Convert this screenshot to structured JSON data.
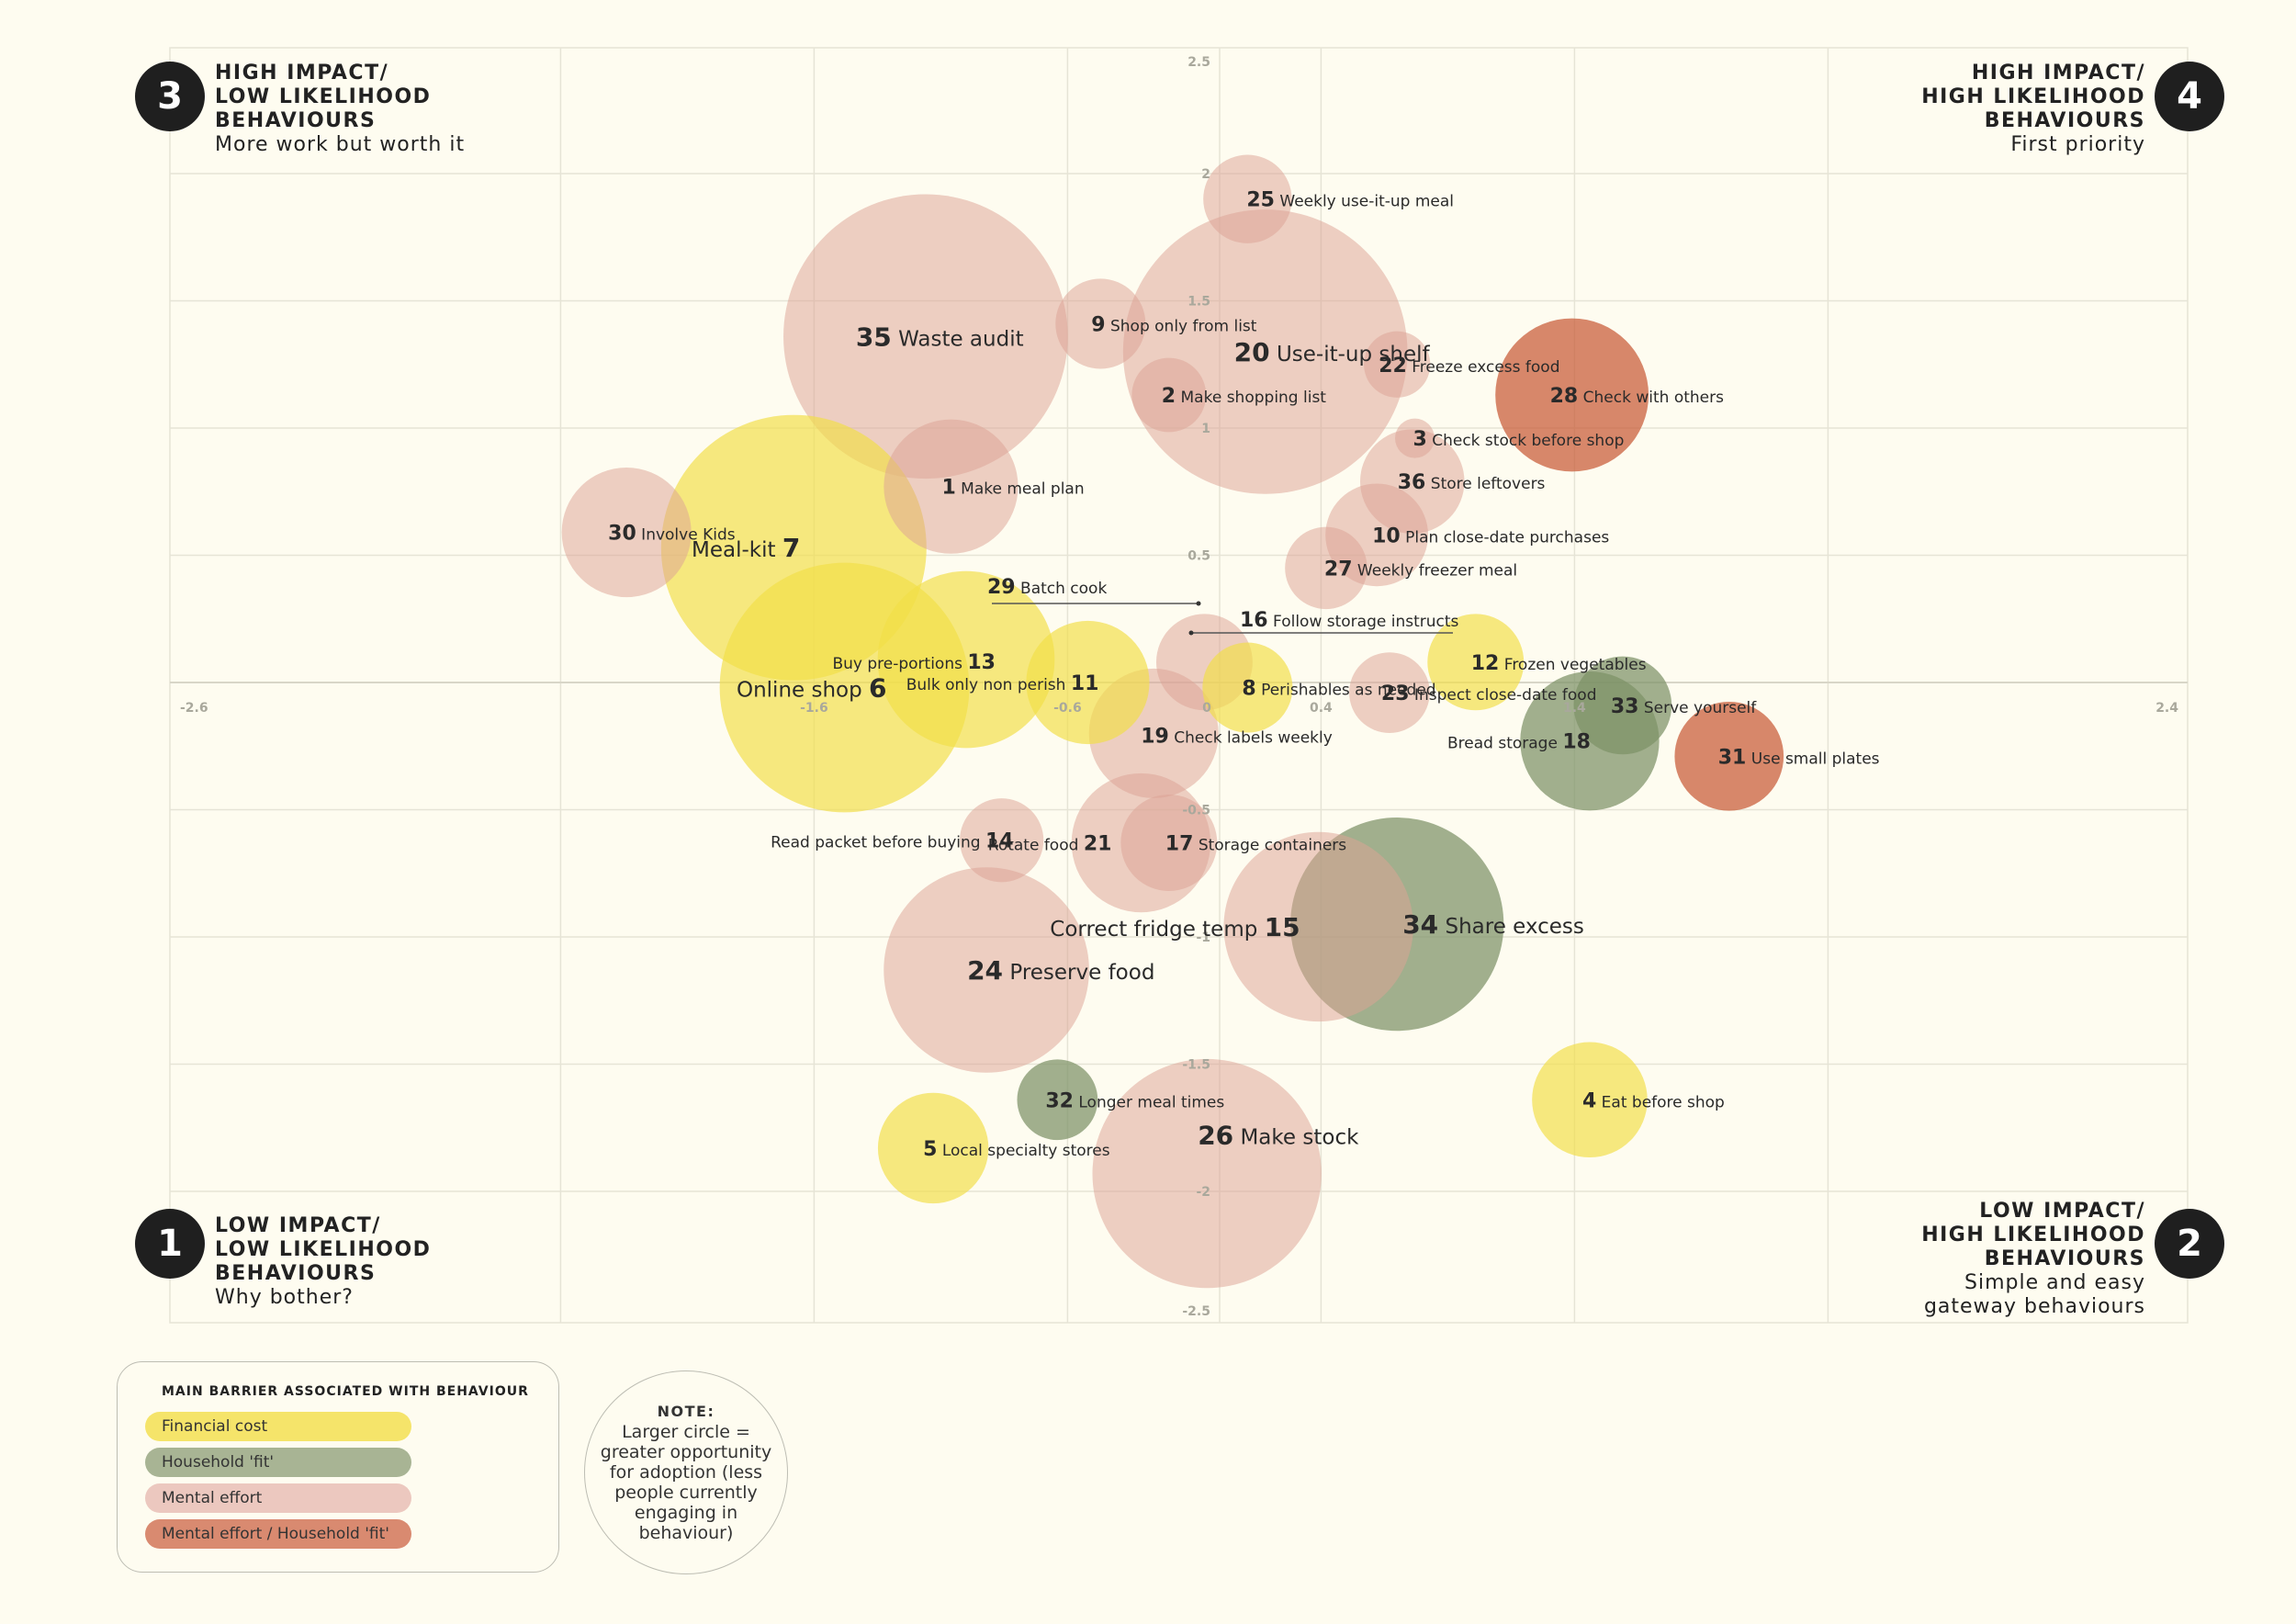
{
  "quadrants": [
    {
      "number": "3",
      "title": "HIGH IMPACT/\nLOW LIKELIHOOD\nBEHAVIOURS",
      "subtitle": "More work but worth it"
    },
    {
      "number": "4",
      "title": "HIGH IMPACT/\nHIGH LIKELIHOOD\nBEHAVIOURS",
      "subtitle": "First priority"
    },
    {
      "number": "1",
      "title": "LOW IMPACT/\nLOW LIKELIHOOD\nBEHAVIOURS",
      "subtitle": "Why bother?"
    },
    {
      "number": "2",
      "title": "LOW IMPACT/\nHIGH LIKELIHOOD\nBEHAVIOURS",
      "subtitle": "Simple and easy\ngateway behaviours"
    }
  ],
  "legend": {
    "title": "MAIN BARRIER ASSOCIATED WITH BEHAVIOUR",
    "items": [
      {
        "label": "Financial cost",
        "color": "#f5e46a"
      },
      {
        "label": "Household 'fit'",
        "color": "#a8b494"
      },
      {
        "label": "Mental effort",
        "color": "#ecc8bf"
      },
      {
        "label": "Mental effort / Household 'fit'",
        "color": "#d98a70"
      }
    ]
  },
  "note": {
    "title": "NOTE:",
    "text": "Larger circle = greater opportunity for adoption (less people currently engaging in behaviour)"
  },
  "chart_data": {
    "type": "scatter",
    "subtype": "bubble",
    "xlim": [
      -2.6,
      2.4
    ],
    "ylim": [
      -2.5,
      2.5
    ],
    "x_ticks": [
      "-2.6",
      "-1.6",
      "-0.6",
      "0",
      "0.4",
      "1.4",
      "2.4"
    ],
    "x_tick_values": [
      -2.6,
      -1.6,
      -0.6,
      0,
      0.4,
      1.4,
      2.4
    ],
    "y_ticks": [
      "2.5",
      "2",
      "1.5",
      "1",
      "0.5",
      "-0.5",
      "-1",
      "-1.5",
      "-2",
      "-2.5"
    ],
    "y_tick_values": [
      2.5,
      2,
      1.5,
      1,
      0.5,
      -0.5,
      -1,
      -1.5,
      -2,
      -2.5
    ],
    "categories": {
      "financial": "#f2df48",
      "household": "#7d9266",
      "mental": "#dca396",
      "mental_household": "#c85a36"
    },
    "points": [
      {
        "id": "35",
        "label": "Waste audit",
        "x": -1.16,
        "y": 1.36,
        "r": 1.8,
        "cat": "mental",
        "order": "num-first",
        "big": true
      },
      {
        "id": "20",
        "label": "Use-it-up shelf",
        "x": 0.18,
        "y": 1.3,
        "r": 1.8,
        "cat": "mental",
        "order": "num-first",
        "big": true
      },
      {
        "id": "26",
        "label": "Make stock",
        "x": -0.05,
        "y": -1.93,
        "r": 1.45,
        "cat": "mental",
        "order": "num-first",
        "big": true
      },
      {
        "id": "24",
        "label": "Preserve food",
        "x": -0.92,
        "y": -1.13,
        "r": 1.3,
        "cat": "mental",
        "order": "num-first",
        "big": true
      },
      {
        "id": "34",
        "label": "Share excess",
        "x": 0.7,
        "y": -0.95,
        "r": 1.35,
        "cat": "household",
        "order": "num-first",
        "big": true
      },
      {
        "id": "15",
        "label": "Correct fridge temp",
        "x": 0.39,
        "y": -0.96,
        "r": 1.2,
        "cat": "mental",
        "order": "label-first",
        "big": true
      },
      {
        "id": "7",
        "label": "Meal-kit",
        "x": -1.68,
        "y": 0.53,
        "r": 1.68,
        "cat": "financial",
        "order": "label-first",
        "big": true
      },
      {
        "id": "6",
        "label": "Online shop",
        "x": -1.48,
        "y": -0.02,
        "r": 1.58,
        "cat": "financial",
        "order": "label-first",
        "big": true
      },
      {
        "id": "13",
        "label": "Buy pre-portions",
        "x": -1.0,
        "y": 0.09,
        "r": 1.12,
        "cat": "financial",
        "order": "label-first",
        "big": false
      },
      {
        "id": "1",
        "label": "Make meal plan",
        "x": -1.06,
        "y": 0.77,
        "r": 0.85,
        "cat": "mental",
        "order": "num-first",
        "big": false
      },
      {
        "id": "30",
        "label": "Involve Kids",
        "x": -2.34,
        "y": 0.59,
        "r": 0.82,
        "cat": "mental",
        "order": "num-first",
        "big": false
      },
      {
        "id": "28",
        "label": "Check with others",
        "x": 1.39,
        "y": 1.13,
        "r": 0.97,
        "cat": "mental_household",
        "order": "num-first",
        "big": false
      },
      {
        "id": "11",
        "label": "Bulk only non perish",
        "x": -0.52,
        "y": 0.0,
        "r": 0.78,
        "cat": "financial",
        "order": "label-first",
        "big": false
      },
      {
        "id": "19",
        "label": "Check labels weekly",
        "x": -0.26,
        "y": -0.2,
        "r": 0.82,
        "cat": "mental",
        "order": "num-first",
        "big": false
      },
      {
        "id": "21",
        "label": "Rotate food",
        "x": -0.31,
        "y": -0.63,
        "r": 0.88,
        "cat": "mental",
        "order": "label-first",
        "big": false
      },
      {
        "id": "17",
        "label": "Storage containers",
        "x": -0.2,
        "y": -0.63,
        "r": 0.61,
        "cat": "mental",
        "order": "num-first",
        "big": false
      },
      {
        "id": "16",
        "label": "Follow storage instructs",
        "x": -0.06,
        "y": 0.08,
        "r": 0.61,
        "cat": "mental",
        "order": "num-first",
        "big": false
      },
      {
        "id": "8",
        "label": "Perishables as needed",
        "x": 0.11,
        "y": -0.02,
        "r": 0.57,
        "cat": "financial",
        "order": "num-first",
        "big": false
      },
      {
        "id": "23",
        "label": "Inspect close-date food",
        "x": 0.67,
        "y": -0.04,
        "r": 0.51,
        "cat": "mental",
        "order": "num-first",
        "big": false
      },
      {
        "id": "12",
        "label": "Frozen vegetables",
        "x": 1.01,
        "y": 0.08,
        "r": 0.61,
        "cat": "financial",
        "order": "num-first",
        "big": false
      },
      {
        "id": "18",
        "label": "Bread storage",
        "x": 1.46,
        "y": -0.23,
        "r": 0.88,
        "cat": "household",
        "order": "label-first",
        "big": false
      },
      {
        "id": "33",
        "label": "Serve yourself",
        "x": 1.59,
        "y": -0.09,
        "r": 0.62,
        "cat": "household",
        "order": "num-first",
        "big": false
      },
      {
        "id": "31",
        "label": "Use small plates",
        "x": 2.01,
        "y": -0.29,
        "r": 0.69,
        "cat": "mental_household",
        "order": "num-first",
        "big": false
      },
      {
        "id": "27",
        "label": "Weekly freezer meal",
        "x": 0.42,
        "y": 0.45,
        "r": 0.52,
        "cat": "mental",
        "order": "num-first",
        "big": false
      },
      {
        "id": "10",
        "label": "Plan close-date purchases",
        "x": 0.62,
        "y": 0.58,
        "r": 0.65,
        "cat": "mental",
        "order": "num-first",
        "big": false
      },
      {
        "id": "36",
        "label": "Store leftovers",
        "x": 0.76,
        "y": 0.79,
        "r": 0.66,
        "cat": "mental",
        "order": "num-first",
        "big": false
      },
      {
        "id": "3",
        "label": "Check stock before shop",
        "x": 0.77,
        "y": 0.96,
        "r": 0.25,
        "cat": "mental",
        "order": "num-first",
        "big": false
      },
      {
        "id": "22",
        "label": "Freeze excess food",
        "x": 0.7,
        "y": 1.25,
        "r": 0.42,
        "cat": "mental",
        "order": "num-first",
        "big": false
      },
      {
        "id": "25",
        "label": "Weekly use-it-up meal",
        "x": 0.11,
        "y": 1.9,
        "r": 0.56,
        "cat": "mental",
        "order": "num-first",
        "big": false
      },
      {
        "id": "9",
        "label": "Shop only from list",
        "x": -0.47,
        "y": 1.41,
        "r": 0.57,
        "cat": "mental",
        "order": "num-first",
        "big": false
      },
      {
        "id": "2",
        "label": "Make shopping list",
        "x": -0.2,
        "y": 1.13,
        "r": 0.47,
        "cat": "mental",
        "order": "num-first",
        "big": false
      },
      {
        "id": "14",
        "label": "Read packet before buying",
        "x": -0.86,
        "y": -0.62,
        "r": 0.53,
        "cat": "mental",
        "order": "label-first",
        "big": false
      },
      {
        "id": "32",
        "label": "Longer meal times",
        "x": -0.64,
        "y": -1.64,
        "r": 0.51,
        "cat": "household",
        "order": "num-first",
        "big": false
      },
      {
        "id": "5",
        "label": "Local specialty stores",
        "x": -1.13,
        "y": -1.83,
        "r": 0.7,
        "cat": "financial",
        "order": "num-first",
        "big": false
      },
      {
        "id": "4",
        "label": "Eat before shop",
        "x": 1.46,
        "y": -1.64,
        "r": 0.73,
        "cat": "financial",
        "order": "num-first",
        "big": false
      },
      {
        "id": "29",
        "label": "Batch cook",
        "x": -0.55,
        "y": 0.37,
        "r": 0,
        "cat": "mental",
        "order": "num-first",
        "big": false
      }
    ]
  }
}
